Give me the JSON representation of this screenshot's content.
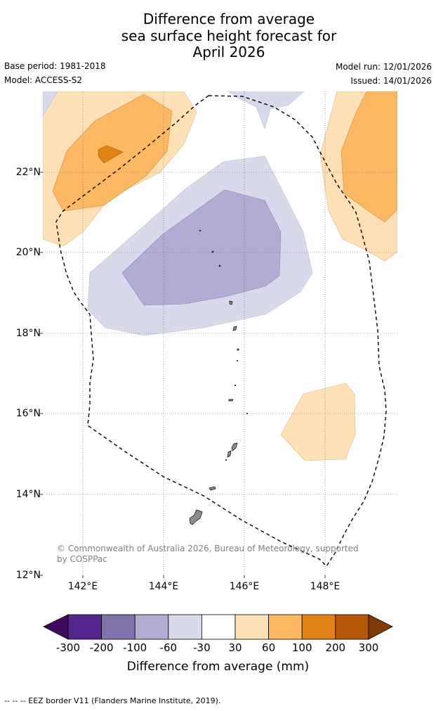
{
  "title": {
    "line1": "Difference from average",
    "line2": "sea surface height forecast for",
    "line3": "April 2026"
  },
  "meta": {
    "base_period": "Base period: 1981-2018",
    "model": "Model: ACCESS-S2",
    "model_run": "Model run: 12/01/2026",
    "issued": "Issued: 14/01/2026"
  },
  "map": {
    "lat_labels": [
      "22°N",
      "20°N",
      "18°N",
      "16°N",
      "14°N",
      "12°N"
    ],
    "lon_labels": [
      "142°E",
      "144°E",
      "146°E",
      "148°E"
    ],
    "copyright": "© Commonwealth of Australia 2026, Bureau of Meteorology, supported by COSPPac",
    "eez_border": "dashed"
  },
  "colorbar": {
    "labels": [
      "-300",
      "-200",
      "-100",
      "-60",
      "-30",
      "30",
      "60",
      "100",
      "200",
      "300"
    ],
    "colors": [
      "#3f0a5e",
      "#54278f",
      "#8073ac",
      "#b2abd2",
      "#d8daeb",
      "#ffffff",
      "#fee0b6",
      "#fdb863",
      "#e08214",
      "#b35806",
      "#7f3b08"
    ],
    "title": "Difference from average (mm)"
  },
  "footnote": "-- -- -- EEZ border V11 (Flanders Marine Institute, 2019)."
}
